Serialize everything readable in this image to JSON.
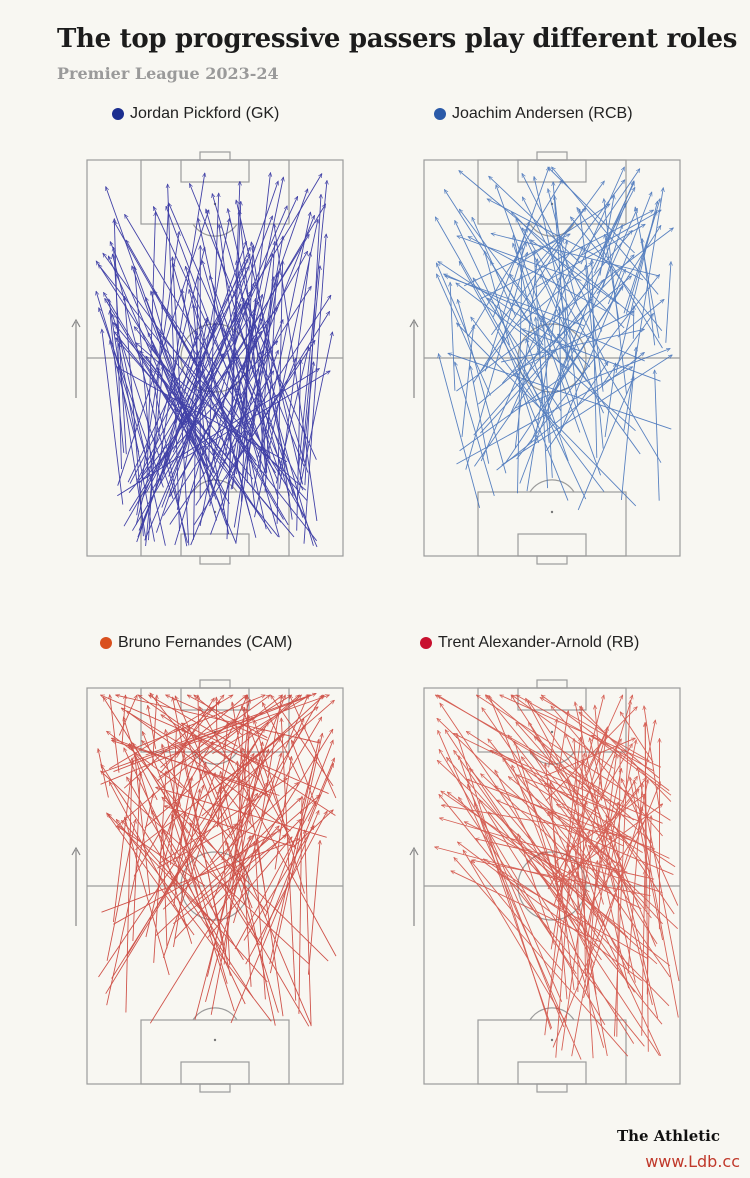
{
  "header": {
    "title": "The top progressive passers play different roles",
    "subtitle": "Premier League 2023-24"
  },
  "brand": "The Athletic",
  "watermark": "www.Ldb.cc",
  "chart_data": [
    {
      "type": "pass-map",
      "player": "Jordan Pickford (GK)",
      "color": "#22229a",
      "badge_color": "#1b2e8f",
      "attack_direction": "up",
      "passes_note": "many long passes launched from own penalty area toward the opposition half"
    },
    {
      "type": "pass-map",
      "player": "Joachim Andersen (RCB)",
      "color": "#3d6db8",
      "badge_color": "#2b5aa8",
      "attack_direction": "up",
      "passes_note": "passes from the right-centre-back zone into the opposition half"
    },
    {
      "type": "pass-map",
      "player": "Bruno Fernandes (CAM)",
      "color": "#c8372d",
      "badge_color": "#d9501e",
      "attack_direction": "up",
      "passes_note": "passes from midfield into the final third and penalty area"
    },
    {
      "type": "pass-map",
      "player": "Trent Alexander-Arnold (RB)",
      "color": "#d0463a",
      "badge_color": "#c8102e",
      "attack_direction": "up",
      "passes_note": "passes from the right flank diagonally into the opposition half"
    }
  ]
}
